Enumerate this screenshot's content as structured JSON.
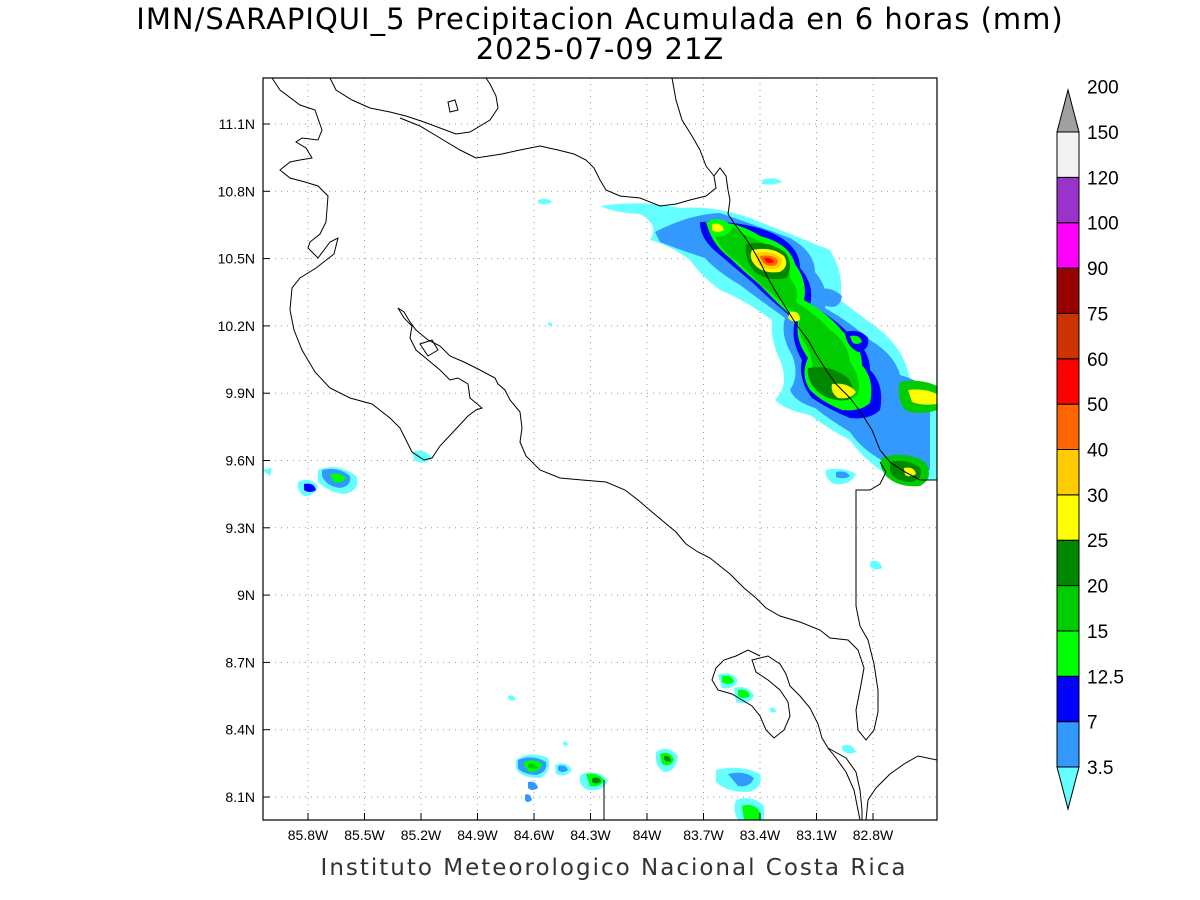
{
  "title_line1": "IMN/SARAPIQUI_5 Precipitacion Acumulada en 6 horas (mm)",
  "title_line2": "2025-07-09 21Z",
  "footer": "Instituto Meteorologico Nacional Costa Rica",
  "map": {
    "lon_labels": [
      "85.8W",
      "85.5W",
      "85.2W",
      "84.9W",
      "84.6W",
      "84.3W",
      "84W",
      "83.7W",
      "83.4W",
      "83.1W",
      "82.8W"
    ],
    "lat_labels": [
      "11.1N",
      "10.8N",
      "10.5N",
      "10.2N",
      "9.9N",
      "9.6N",
      "9.3N",
      "9N",
      "8.7N",
      "8.4N",
      "8.1N"
    ]
  },
  "colorbar": {
    "levels": [
      "3.5",
      "7",
      "12.5",
      "15",
      "20",
      "25",
      "30",
      "40",
      "50",
      "60",
      "75",
      "90",
      "100",
      "120",
      "150",
      "200"
    ],
    "colors": [
      "#66ffff",
      "#3399ff",
      "#0000ff",
      "#00ff00",
      "#00cc00",
      "#008800",
      "#ffff00",
      "#ffcc00",
      "#ff6600",
      "#ff0000",
      "#cc3300",
      "#990000",
      "#ff00ff",
      "#9933cc",
      "#f2f2f2",
      "#a0a0a0"
    ]
  }
}
